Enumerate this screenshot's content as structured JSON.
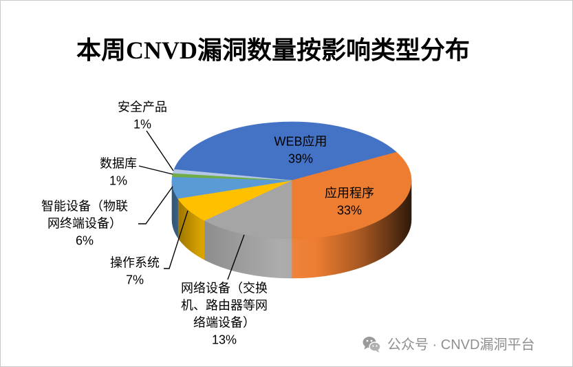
{
  "chart_data": {
    "type": "pie",
    "three_d": true,
    "title": "本周CNVD漏洞数量按影响类型分布",
    "categories": [
      "WEB应用",
      "应用程序",
      "网络设备（交换机、路由器等网络端设备）",
      "操作系统",
      "智能设备（物联网终端设备）",
      "数据库",
      "安全产品"
    ],
    "values": [
      39,
      33,
      13,
      7,
      6,
      1,
      1
    ],
    "unit": "%",
    "colors": [
      "#4472C4",
      "#ED7D31",
      "#A5A5A5",
      "#FFC000",
      "#5B9BD5",
      "#70AD47",
      "#B4C7E7"
    ],
    "legend": "none"
  },
  "watermark": {
    "icon": "wechat-icon",
    "text": "公众号 · CNVD漏洞平台"
  }
}
